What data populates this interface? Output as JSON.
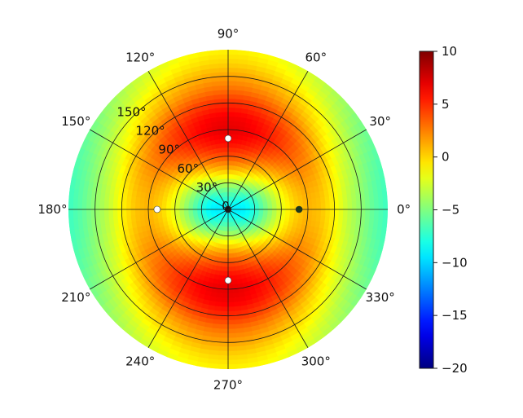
{
  "chart_data": {
    "type": "heatmap",
    "projection": "polar",
    "angular_unit": "degrees",
    "theta_ticks": [
      0,
      30,
      60,
      90,
      120,
      150,
      180,
      210,
      240,
      270,
      300,
      330
    ],
    "theta_tick_labels": [
      "0°",
      "30°",
      "60°",
      "90°",
      "120°",
      "150°",
      "180°",
      "210°",
      "240°",
      "270°",
      "300°",
      "330°"
    ],
    "r_ticks": [
      0,
      30,
      60,
      90,
      120,
      150
    ],
    "r_tick_labels": [
      "0",
      "30°",
      "60°",
      "90°",
      "120°",
      "150°"
    ],
    "r_label_angle_deg": 135,
    "rlim": [
      0,
      180
    ],
    "grid": true,
    "colormap": "jet",
    "colorbar": {
      "vmin": -20,
      "vmax": 10,
      "ticks": [
        10,
        5,
        0,
        -5,
        -10,
        -15,
        -20
      ],
      "tick_labels": [
        "10",
        "5",
        "0",
        "−5",
        "−10",
        "−15",
        "−20"
      ],
      "placement": "right"
    },
    "intensity_profile": {
      "r_deg": [
        0,
        10,
        20,
        30,
        45,
        60,
        75,
        90,
        105,
        120,
        135,
        150,
        165,
        180
      ],
      "value": [
        -9,
        -8.5,
        -7.5,
        -5.5,
        -2,
        1,
        3,
        4,
        3.5,
        2,
        0,
        -1.5,
        -3,
        -4
      ]
    },
    "angular_modulation": {
      "amplitude_db": 3,
      "high_regions_theta_deg": [
        90,
        270
      ],
      "low_regions_theta_deg": [
        0,
        180
      ]
    },
    "markers": [
      {
        "theta": 0,
        "r": 0,
        "color": "#1a1a1a"
      },
      {
        "theta": 90,
        "r": 80,
        "color": "#ffffff"
      },
      {
        "theta": 270,
        "r": 80,
        "color": "#ffffff"
      },
      {
        "theta": 180,
        "r": 80,
        "color": "#ffffff"
      },
      {
        "theta": 0,
        "r": 80,
        "color": "#1a3a1a"
      }
    ]
  }
}
